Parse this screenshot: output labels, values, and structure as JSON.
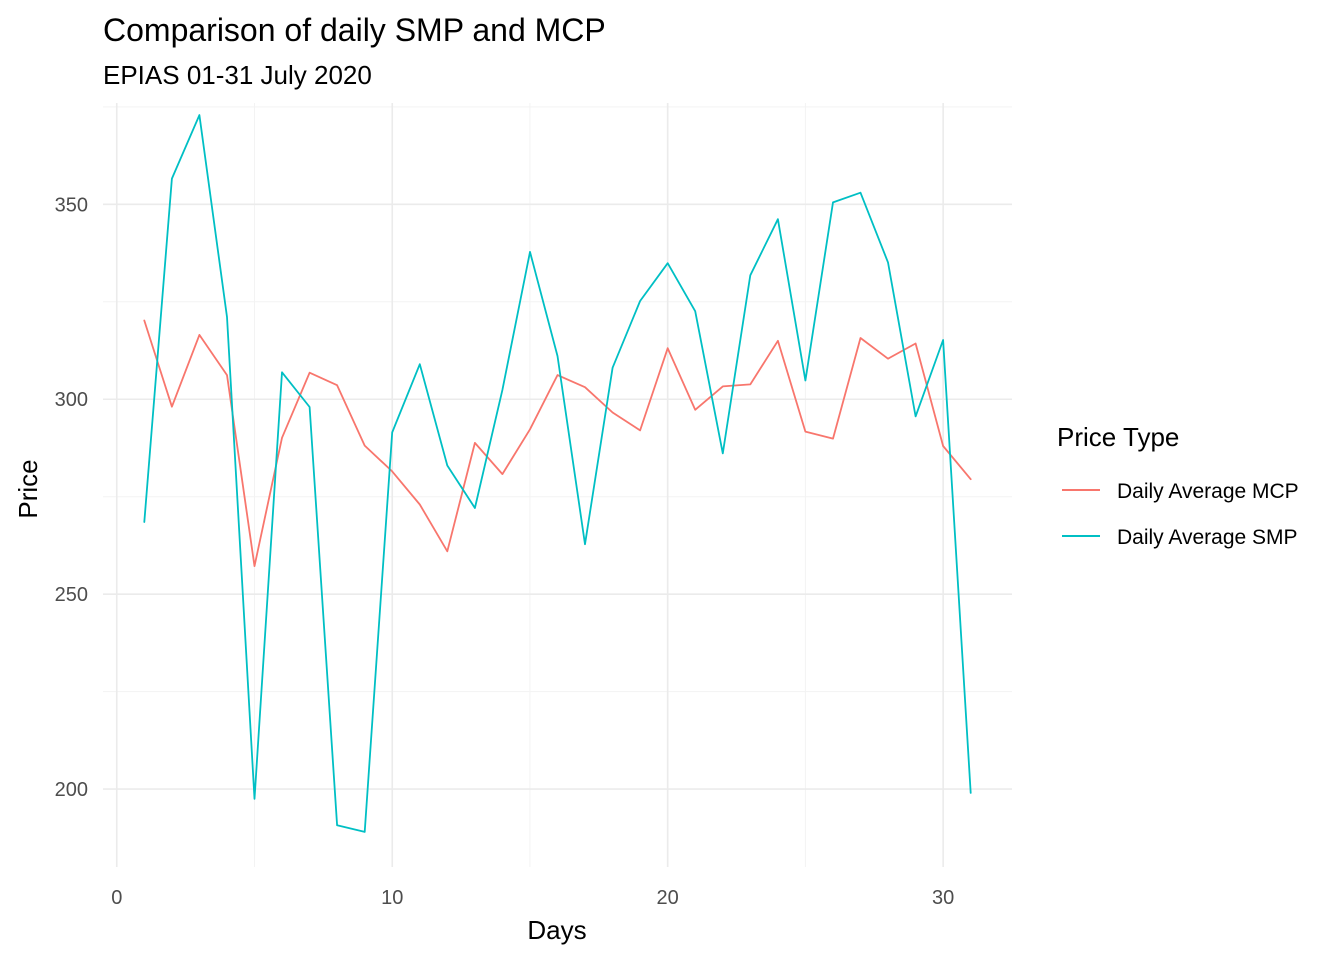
{
  "chart_data": {
    "type": "line",
    "title": "Comparison of daily SMP and MCP",
    "subtitle": "EPIAS 01-31 July 2020",
    "xlabel": "Days",
    "ylabel": "Price",
    "xlim": [
      -0.5,
      32.5
    ],
    "ylim": [
      180,
      376
    ],
    "x_ticks": [
      0,
      10,
      20,
      30
    ],
    "y_ticks": [
      200,
      250,
      300,
      350
    ],
    "grid": true,
    "legend": {
      "title": "Price Type",
      "placement": "right"
    },
    "x": [
      1,
      2,
      3,
      4,
      5,
      6,
      7,
      8,
      9,
      10,
      11,
      12,
      13,
      14,
      15,
      16,
      17,
      18,
      19,
      20,
      21,
      22,
      23,
      24,
      25,
      26,
      27,
      28,
      29,
      30,
      31
    ],
    "series": [
      {
        "name": "Daily Average MCP",
        "color": "#F8766D",
        "values": [
          320.2,
          298.1,
          316.5,
          306.2,
          257.2,
          290.1,
          306.8,
          303.6,
          288.1,
          281.5,
          273.0,
          261.0,
          288.8,
          280.8,
          292.3,
          306.2,
          303.1,
          296.6,
          292.0,
          313.1,
          297.3,
          303.3,
          303.8,
          315.0,
          291.7,
          289.9,
          315.7,
          310.4,
          314.3,
          288.0,
          279.5
        ]
      },
      {
        "name": "Daily Average SMP",
        "color": "#00BFC4",
        "values": [
          268.5,
          356.6,
          372.9,
          321.1,
          197.5,
          306.9,
          298.0,
          190.7,
          189.0,
          291.5,
          309.0,
          283.0,
          272.1,
          302.4,
          337.8,
          311.1,
          262.8,
          308.1,
          325.2,
          334.9,
          322.6,
          286.1,
          331.8,
          346.2,
          304.8,
          350.5,
          353.0,
          335.1,
          295.6,
          315.2,
          199.0
        ]
      }
    ]
  }
}
